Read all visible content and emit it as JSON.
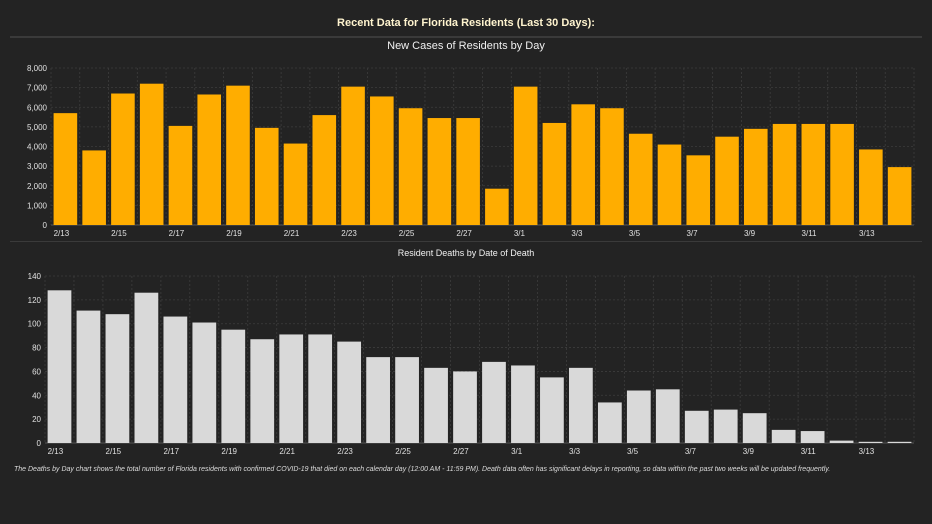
{
  "page_title": "Recent Data for Florida Residents (Last 30 Days):",
  "footnote": "The Deaths by Day chart shows the total number of Florida residents with confirmed COVID-19 that died on each calendar day (12:00 AM - 11:59 PM). Death data often has significant delays in reporting, so data within the past two weeks will be updated frequently.",
  "chart_data": [
    {
      "type": "bar",
      "title": "New Cases of Residents by Day",
      "xlabel": "",
      "ylabel": "",
      "color": "#ffad00",
      "ylim": [
        0,
        8000
      ],
      "yticks": [
        0,
        1000,
        2000,
        3000,
        4000,
        5000,
        6000,
        7000,
        8000
      ],
      "ytick_labels": [
        "0",
        "1,000",
        "2,000",
        "3,000",
        "4,000",
        "5,000",
        "6,000",
        "7,000",
        "8,000"
      ],
      "categories": [
        "2/13",
        "2/14",
        "2/15",
        "2/16",
        "2/17",
        "2/18",
        "2/19",
        "2/20",
        "2/21",
        "2/22",
        "2/23",
        "2/24",
        "2/25",
        "2/26",
        "2/27",
        "2/28",
        "3/1",
        "3/2",
        "3/3",
        "3/4",
        "3/5",
        "3/6",
        "3/7",
        "3/8",
        "3/9",
        "3/10",
        "3/11",
        "3/12",
        "3/13",
        "3/14"
      ],
      "xtick_labels": [
        "2/13",
        "",
        "2/15",
        "",
        "2/17",
        "",
        "2/19",
        "",
        "2/21",
        "",
        "2/23",
        "",
        "2/25",
        "",
        "2/27",
        "",
        "3/1",
        "",
        "3/3",
        "",
        "3/5",
        "",
        "3/7",
        "",
        "3/9",
        "",
        "3/11",
        "",
        "3/13",
        ""
      ],
      "values": [
        5700,
        3800,
        6700,
        7200,
        5050,
        6650,
        7100,
        4950,
        4150,
        5600,
        7050,
        6550,
        5950,
        5450,
        5450,
        1850,
        7050,
        5200,
        6150,
        5950,
        4650,
        4100,
        3550,
        4500,
        4900,
        5150,
        5150,
        5150,
        3850,
        2950
      ],
      "grid": true
    },
    {
      "type": "bar",
      "title": "Resident Deaths by Date of Death",
      "xlabel": "",
      "ylabel": "",
      "color": "#d9d9d9",
      "ylim": [
        0,
        140
      ],
      "yticks": [
        0,
        20,
        40,
        60,
        80,
        100,
        120,
        140
      ],
      "ytick_labels": [
        "0",
        "20",
        "40",
        "60",
        "80",
        "100",
        "120",
        "140"
      ],
      "categories": [
        "2/13",
        "2/14",
        "2/15",
        "2/16",
        "2/17",
        "2/18",
        "2/19",
        "2/20",
        "2/21",
        "2/22",
        "2/23",
        "2/24",
        "2/25",
        "2/26",
        "2/27",
        "2/28",
        "3/1",
        "3/2",
        "3/3",
        "3/4",
        "3/5",
        "3/6",
        "3/7",
        "3/8",
        "3/9",
        "3/10",
        "3/11",
        "3/12",
        "3/13",
        "3/14"
      ],
      "xtick_labels": [
        "2/13",
        "",
        "2/15",
        "",
        "2/17",
        "",
        "2/19",
        "",
        "2/21",
        "",
        "2/23",
        "",
        "2/25",
        "",
        "2/27",
        "",
        "3/1",
        "",
        "3/3",
        "",
        "3/5",
        "",
        "3/7",
        "",
        "3/9",
        "",
        "3/11",
        "",
        "3/13",
        ""
      ],
      "values": [
        128,
        111,
        108,
        126,
        106,
        101,
        95,
        87,
        91,
        91,
        85,
        72,
        72,
        63,
        60,
        68,
        65,
        55,
        63,
        34,
        44,
        45,
        27,
        28,
        25,
        11,
        10,
        2,
        1,
        1
      ],
      "grid": true
    }
  ]
}
